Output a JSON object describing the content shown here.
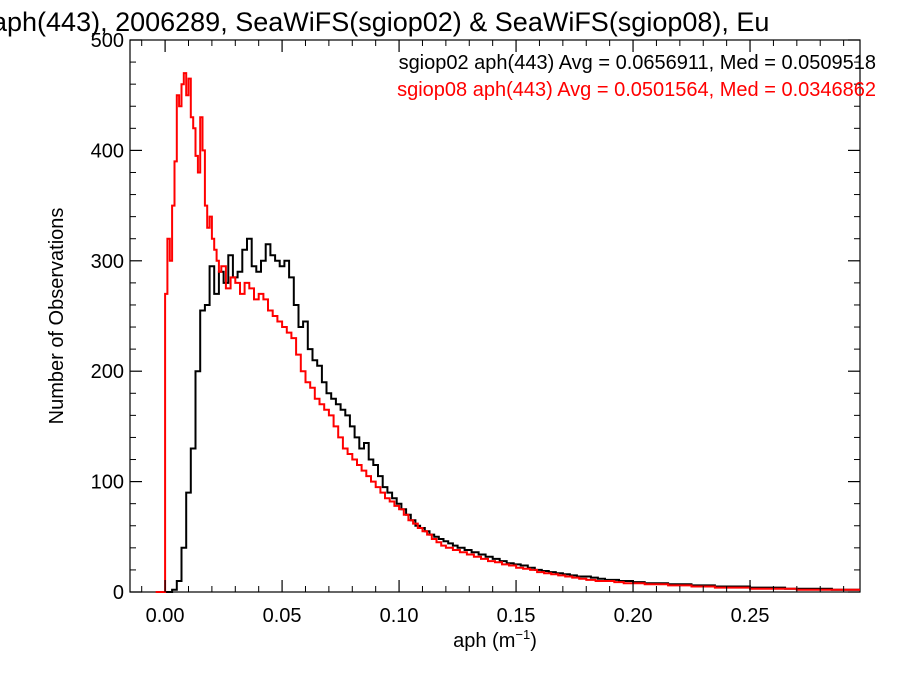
{
  "chart_data": {
    "type": "line",
    "title": "aph(443), 2006289, SeaWiFS(sgiop02) & SeaWiFS(sgiop08), Eu",
    "xlabel": "aph (m",
    "xlabel_sup": "−1",
    "xlabel_suffix": ")",
    "ylabel": "Number of Observations",
    "xlim": [
      -0.015,
      0.297
    ],
    "ylim": [
      0,
      500
    ],
    "xticks": [
      0.0,
      0.05,
      0.1,
      0.15,
      0.2,
      0.25
    ],
    "xtick_labels": [
      "0.00",
      "0.05",
      "0.10",
      "0.15",
      "0.20",
      "0.25"
    ],
    "yticks": [
      0,
      100,
      200,
      300,
      400,
      500
    ],
    "ytick_labels": [
      "0",
      "100",
      "200",
      "300",
      "400",
      "500"
    ],
    "grid": false,
    "step": true,
    "bin_width": 0.001,
    "legend_position": "top-right",
    "series": [
      {
        "name": "sgiop02",
        "color": "#000000",
        "label": "sgiop02 aph(443) Avg = 0.0656911, Med = 0.0509518",
        "x": [
          0.0,
          0.003,
          0.005,
          0.007,
          0.009,
          0.011,
          0.013,
          0.015,
          0.017,
          0.019,
          0.021,
          0.023,
          0.025,
          0.027,
          0.029,
          0.031,
          0.033,
          0.035,
          0.037,
          0.039,
          0.041,
          0.043,
          0.045,
          0.047,
          0.049,
          0.051,
          0.053,
          0.055,
          0.057,
          0.059,
          0.061,
          0.063,
          0.065,
          0.067,
          0.069,
          0.071,
          0.073,
          0.075,
          0.077,
          0.079,
          0.081,
          0.083,
          0.085,
          0.087,
          0.089,
          0.091,
          0.093,
          0.095,
          0.097,
          0.099,
          0.101,
          0.103,
          0.105,
          0.107,
          0.109,
          0.111,
          0.113,
          0.115,
          0.117,
          0.119,
          0.121,
          0.123,
          0.125,
          0.128,
          0.131,
          0.134,
          0.137,
          0.14,
          0.143,
          0.146,
          0.149,
          0.152,
          0.155,
          0.158,
          0.161,
          0.164,
          0.167,
          0.17,
          0.173,
          0.176,
          0.179,
          0.182,
          0.185,
          0.188,
          0.191,
          0.194,
          0.197,
          0.2,
          0.205,
          0.21,
          0.215,
          0.22,
          0.225,
          0.23,
          0.235,
          0.24,
          0.245,
          0.25,
          0.255,
          0.26,
          0.265,
          0.27,
          0.275,
          0.28,
          0.285,
          0.29,
          0.297
        ],
        "y": [
          0,
          2,
          10,
          40,
          90,
          130,
          200,
          255,
          260,
          295,
          270,
          290,
          280,
          305,
          285,
          290,
          310,
          320,
          295,
          290,
          300,
          315,
          305,
          300,
          295,
          300,
          285,
          260,
          240,
          245,
          220,
          210,
          205,
          190,
          180,
          175,
          170,
          165,
          160,
          150,
          140,
          130,
          135,
          120,
          115,
          105,
          95,
          90,
          85,
          80,
          75,
          70,
          65,
          60,
          58,
          55,
          52,
          50,
          48,
          46,
          44,
          42,
          40,
          38,
          36,
          34,
          32,
          30,
          28,
          26,
          25,
          24,
          22,
          20,
          19,
          18,
          17,
          16,
          15,
          14,
          14,
          13,
          12,
          11,
          11,
          10,
          10,
          9,
          8,
          8,
          7,
          7,
          6,
          6,
          5,
          5,
          5,
          4,
          4,
          4,
          3,
          3,
          3,
          3,
          2,
          2,
          2
        ]
      },
      {
        "name": "sgiop08",
        "color": "#ff0000",
        "label": "sgiop08 aph(443) Avg = 0.0501564, Med = 0.0346862",
        "x": [
          -0.004,
          -0.002,
          0.0,
          0.001,
          0.002,
          0.003,
          0.004,
          0.005,
          0.006,
          0.007,
          0.008,
          0.009,
          0.01,
          0.011,
          0.012,
          0.013,
          0.014,
          0.015,
          0.016,
          0.017,
          0.018,
          0.019,
          0.02,
          0.021,
          0.022,
          0.023,
          0.024,
          0.026,
          0.028,
          0.03,
          0.032,
          0.034,
          0.036,
          0.038,
          0.04,
          0.042,
          0.044,
          0.046,
          0.048,
          0.05,
          0.052,
          0.054,
          0.056,
          0.058,
          0.06,
          0.062,
          0.064,
          0.066,
          0.068,
          0.07,
          0.072,
          0.074,
          0.076,
          0.078,
          0.08,
          0.082,
          0.084,
          0.086,
          0.088,
          0.09,
          0.092,
          0.094,
          0.096,
          0.098,
          0.1,
          0.102,
          0.104,
          0.106,
          0.108,
          0.11,
          0.112,
          0.114,
          0.116,
          0.118,
          0.12,
          0.123,
          0.126,
          0.129,
          0.132,
          0.135,
          0.138,
          0.141,
          0.144,
          0.147,
          0.15,
          0.153,
          0.156,
          0.159,
          0.162,
          0.165,
          0.168,
          0.171,
          0.174,
          0.177,
          0.18,
          0.184,
          0.188,
          0.192,
          0.196,
          0.2,
          0.205,
          0.21,
          0.215,
          0.22,
          0.225,
          0.23,
          0.235,
          0.24,
          0.245,
          0.25,
          0.255,
          0.26,
          0.265,
          0.27,
          0.275,
          0.28,
          0.285,
          0.29,
          0.297
        ],
        "y": [
          0,
          0,
          270,
          320,
          300,
          350,
          390,
          450,
          440,
          460,
          470,
          450,
          465,
          430,
          420,
          395,
          380,
          430,
          400,
          350,
          330,
          340,
          320,
          310,
          300,
          290,
          295,
          275,
          285,
          280,
          270,
          280,
          275,
          265,
          270,
          265,
          255,
          250,
          245,
          240,
          235,
          230,
          215,
          200,
          190,
          185,
          175,
          170,
          165,
          160,
          150,
          140,
          130,
          125,
          120,
          115,
          110,
          105,
          100,
          95,
          90,
          85,
          82,
          78,
          75,
          70,
          65,
          62,
          58,
          55,
          52,
          48,
          45,
          42,
          40,
          38,
          36,
          34,
          32,
          30,
          28,
          27,
          25,
          24,
          22,
          21,
          20,
          18,
          17,
          16,
          15,
          14,
          13,
          12,
          11,
          10,
          10,
          9,
          8,
          8,
          7,
          7,
          6,
          6,
          5,
          5,
          4,
          4,
          4,
          3,
          3,
          3,
          3,
          2,
          2,
          2,
          2,
          2,
          2
        ]
      }
    ]
  }
}
